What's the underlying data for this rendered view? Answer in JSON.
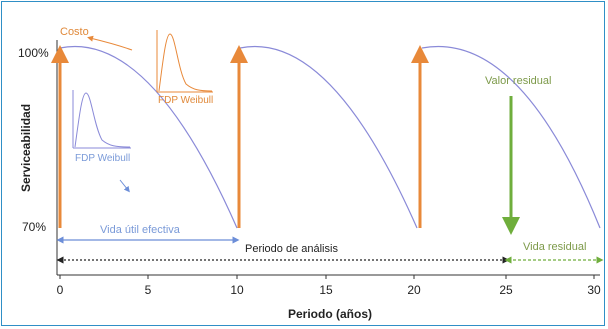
{
  "diagram": {
    "y_axis_label": "Serviceabilidad",
    "x_axis_label": "Periodo (años)",
    "y_top_label": "100%",
    "y_bottom_label": "70%",
    "x_ticks": [
      "0",
      "5",
      "10",
      "15",
      "20",
      "25",
      "30"
    ],
    "annotations": {
      "costo": "Costo",
      "fdp_weibull_orange": "FDP Weibull",
      "fdp_weibull_blue": "FDP Weibull",
      "valor_residual": "Valor residual",
      "vida_util": "Vida útil efectiva",
      "periodo_analisis": "Periodo de análisis",
      "vida_residual": "Vida residual"
    },
    "colors": {
      "curve": "#8a8ad8",
      "cost_arrow": "#e8893a",
      "residual_arrow": "#6fae3c",
      "blue_label": "#7a9ad8",
      "orange_label": "#e0893a",
      "green_label": "#7d9a4a",
      "frame": "#2f8fc6"
    }
  }
}
